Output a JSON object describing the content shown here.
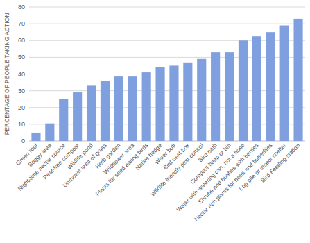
{
  "chart_data": {
    "type": "bar",
    "y_label": "PERCENTAGE OF PEOPLE TAKING ACTION",
    "categories": [
      "Green roof",
      "Boggy area",
      "Night-time nectar source",
      "Peat-free compost",
      "Wildlife pond",
      "Unmown area of grass",
      "Herb garden",
      "Wildflower area",
      "Plants for seed eating birds",
      "Native hedge",
      "Water butt",
      "Bird nest box",
      "Wildlife friendly pest control",
      "Bird bath",
      "Compost heap or bin",
      "Water with watering can, not a hose",
      "Shrubs and bushes with berries",
      "Nectar rich plants for bees and butterflies",
      "Log pile or insect shelter",
      "Bird Feeding station"
    ],
    "values": [
      5,
      10.5,
      25,
      29,
      33,
      36,
      38.5,
      38.5,
      41,
      44,
      45,
      46.5,
      49,
      53,
      53,
      60,
      62.5,
      65,
      69,
      73
    ],
    "color": "#7f9fdf",
    "ylim": [
      0,
      80
    ],
    "yticks": [
      0,
      10,
      20,
      30,
      40,
      50,
      60,
      70,
      80
    ],
    "grid": true
  }
}
